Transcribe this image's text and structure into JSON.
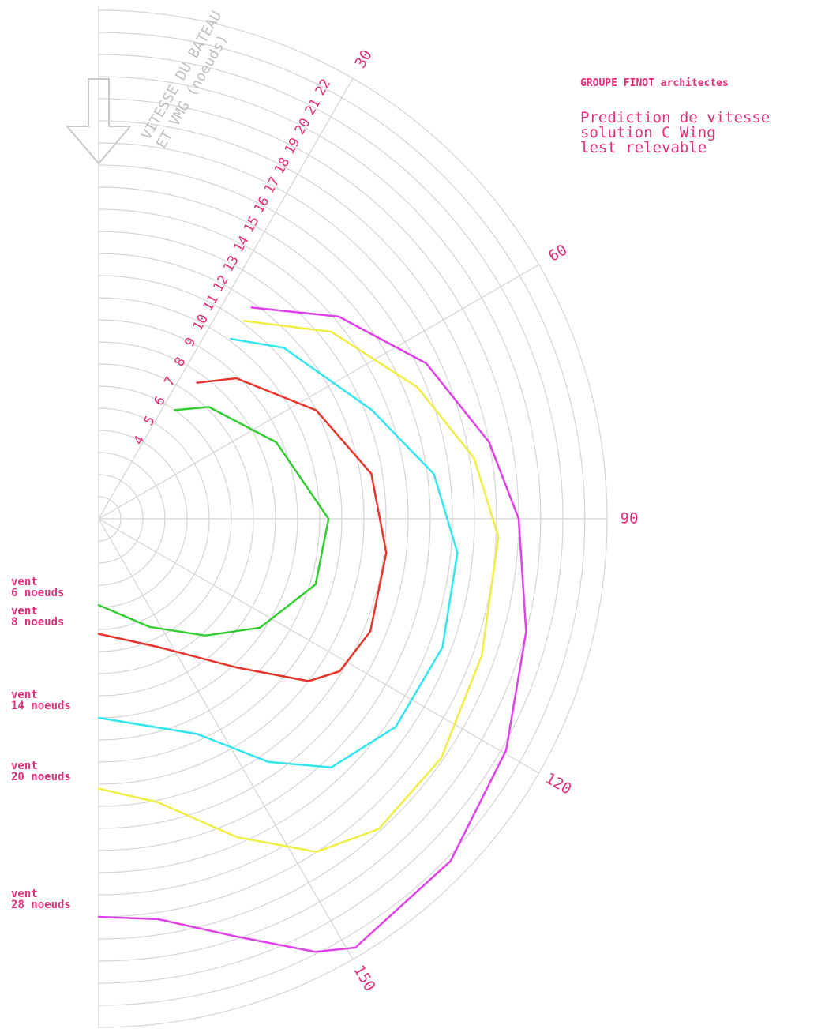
{
  "chart_data": {
    "type": "polar",
    "title": "GROUPE FINOT architectes",
    "subtitle": "Prediction de vitesse\nsolution C Wing\nlest relevable",
    "r_label": "VITESSE DU BATEAU\nET VMG (noeuds)",
    "rlim": [
      0,
      23
    ],
    "rticks": [
      4,
      5,
      6,
      7,
      8,
      9,
      10,
      11,
      12,
      13,
      14,
      15,
      16,
      17,
      18,
      19,
      20,
      21,
      22
    ],
    "thetaticks": [
      30,
      60,
      90,
      120,
      150
    ],
    "grid": true,
    "series": [
      {
        "name": "vent\n6 noeuds",
        "color": "#33cc33",
        "theta": [
          35,
          44.6,
          66.7,
          90,
          106.8,
          124,
          137.6,
          154.8,
          180
        ],
        "values": [
          6.0,
          7.1,
          8.75,
          10.4,
          10.25,
          8.8,
          7.15,
          5.4,
          3.9
        ]
      },
      {
        "name": "vent\n8 noeuds",
        "color": "#e8352a",
        "theta": [
          35.9,
          44.4,
          63.5,
          80.6,
          96.7,
          112.5,
          122.3,
          127.7,
          137,
          155,
          180
        ],
        "values": [
          7.6,
          8.9,
          11,
          12.5,
          13.1,
          13.3,
          12.9,
          12,
          9.2,
          6.4,
          5.2
        ]
      },
      {
        "name": "vent\n14 noeuds",
        "color": "#33e6ee",
        "theta": [
          36.3,
          47.3,
          68.3,
          82.4,
          95.4,
          110.5,
          125,
          136.9,
          145.1,
          155.4,
          180
        ],
        "values": [
          10.1,
          11.4,
          13.3,
          15.3,
          16.3,
          16.6,
          16.4,
          15.4,
          13.4,
          10.7,
          9.0
        ]
      },
      {
        "name": "vent\n20 noeuds",
        "color": "#eeee44",
        "theta": [
          36.2,
          51.2,
          67.6,
          80.8,
          92.6,
          109.6,
          124.9,
          137.9,
          146.8,
          156.5,
          168.2,
          180
        ],
        "values": [
          11.1,
          13.5,
          15.6,
          17.2,
          18.1,
          18.4,
          18.9,
          18.9,
          18,
          15.7,
          13.1,
          12.2
        ]
      },
      {
        "name": "vent\n28 noeuds",
        "color": "#e040e8",
        "theta": [
          35.9,
          49.9,
          64.6,
          78.9,
          90,
          104.8,
          119.6,
          134.2,
          149.1,
          153.4,
          161.7,
          171.6,
          180
        ],
        "values": [
          11.8,
          14.2,
          16.4,
          18,
          19.0,
          20,
          21.2,
          22.2,
          22.6,
          21.9,
          19.9,
          18.3,
          18
        ]
      }
    ]
  }
}
